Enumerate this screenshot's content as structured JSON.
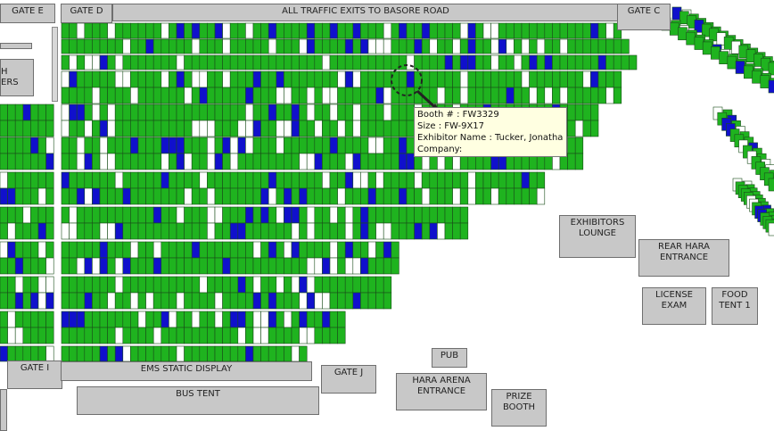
{
  "labels": {
    "gate_e": "GATE E",
    "gate_d": "GATE D",
    "exit_banner": "ALL TRAFFIC EXITS TO BASORE ROAD",
    "gate_c": "GATE C",
    "partial_left_label": "H\nERS",
    "exhibitors_lounge": "EXHIBITORS\nLOUNGE",
    "rear_hara_entrance": "REAR HARA\nENTRANCE",
    "license_exam": "LICENSE\nEXAM",
    "food_tent": "FOOD\nTENT 1",
    "pub": "PUB",
    "hara_arena_entrance": "HARA ARENA\nENTRANCE",
    "prize_booth": "PRIZE\nBOOTH",
    "gate_i": "GATE I",
    "ems_static_display": "EMS STATIC DISPLAY",
    "gate_j": "GATE J",
    "bus_tent": "BUS TENT"
  },
  "tooltip": {
    "booth": "Booth # : FW3329",
    "size": "Size : FW-9X17",
    "exhibitor": "Exhibitor Name : Tucker, Jonathan",
    "company": "Company:"
  },
  "legend_colors": {
    "available": "#ffffff",
    "reserved": "#1fb31f",
    "highlighted": "#1010cc",
    "booth_border": "#1a4d1a"
  }
}
